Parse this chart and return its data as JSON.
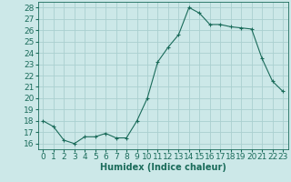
{
  "x": [
    0,
    1,
    2,
    3,
    4,
    5,
    6,
    7,
    8,
    9,
    10,
    11,
    12,
    13,
    14,
    15,
    16,
    17,
    18,
    19,
    20,
    21,
    22,
    23
  ],
  "y": [
    18.0,
    17.5,
    16.3,
    16.0,
    16.6,
    16.6,
    16.9,
    16.5,
    16.5,
    18.0,
    20.0,
    23.2,
    24.5,
    25.6,
    28.0,
    27.5,
    26.5,
    26.5,
    26.3,
    26.2,
    26.1,
    23.5,
    21.5,
    20.6
  ],
  "bg_color": "#cce8e8",
  "grid_color": "#aad0d0",
  "line_color": "#1a6b5a",
  "marker_color": "#1a6b5a",
  "xlabel": "Humidex (Indice chaleur)",
  "ylabel_ticks": [
    16,
    17,
    18,
    19,
    20,
    21,
    22,
    23,
    24,
    25,
    26,
    27,
    28
  ],
  "xlim": [
    -0.5,
    23.5
  ],
  "ylim": [
    15.5,
    28.5
  ],
  "xlabel_fontsize": 7,
  "tick_fontsize": 6.5
}
